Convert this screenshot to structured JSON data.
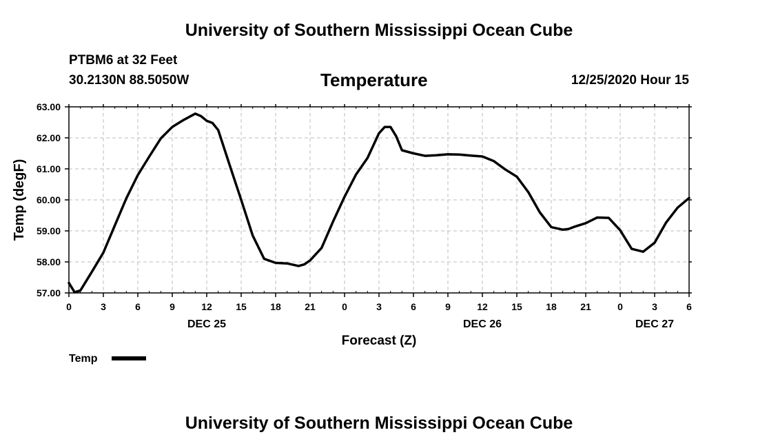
{
  "header": {
    "title_top": "University of Southern Mississippi Ocean Cube",
    "station": "PTBM6 at 32 Feet",
    "coords": "30.2130N 88.5050W",
    "chart_title": "Temperature",
    "datetime": "12/25/2020 Hour 15"
  },
  "footer": {
    "title_bottom": "University of Southern Mississippi Ocean Cube"
  },
  "colors": {
    "line": "#000000",
    "grid": "#bbbbbb"
  },
  "chart_data": {
    "type": "line",
    "title": "Temperature",
    "xlabel": "Forecast (Z)",
    "ylabel": "Temp (degF)",
    "ylim": [
      57,
      63
    ],
    "xlim": [
      0,
      54
    ],
    "y_ticks": [
      "57.00",
      "58.00",
      "59.00",
      "60.00",
      "61.00",
      "62.00",
      "63.00"
    ],
    "x_tick_labels": [
      "0",
      "3",
      "6",
      "9",
      "12",
      "15",
      "18",
      "21",
      "0",
      "3",
      "6",
      "9",
      "12",
      "15",
      "18",
      "21",
      "0",
      "3",
      "6"
    ],
    "date_labels": [
      {
        "label": "DEC 25",
        "hours": 12
      },
      {
        "label": "DEC 26",
        "hours": 36
      },
      {
        "label": "DEC 27",
        "hours": 51
      }
    ],
    "grid": true,
    "legend": {
      "placement": "bottom-left",
      "label": "Temp"
    },
    "series": [
      {
        "name": "Temp",
        "x": [
          0,
          0.5,
          1,
          1.5,
          2,
          3,
          4,
          5,
          6,
          7,
          8,
          9,
          10,
          11,
          11.5,
          12,
          12.5,
          13,
          14,
          15,
          16,
          17,
          18,
          19,
          20,
          20.5,
          21,
          22,
          23,
          24,
          25,
          26,
          27,
          27.5,
          28,
          28.5,
          29,
          30,
          31,
          32,
          33,
          34,
          35,
          36,
          37,
          38,
          39,
          40,
          41,
          42,
          43,
          43.5,
          44,
          45,
          46,
          47,
          48,
          48.5,
          49,
          50,
          51,
          52,
          53,
          54
        ],
        "y": [
          57.32,
          57.02,
          57.08,
          57.38,
          57.68,
          58.3,
          59.18,
          60.05,
          60.8,
          61.4,
          61.98,
          62.35,
          62.58,
          62.78,
          62.7,
          62.55,
          62.48,
          62.25,
          61.12,
          60.0,
          58.85,
          58.1,
          57.97,
          57.95,
          57.87,
          57.92,
          58.05,
          58.45,
          59.3,
          60.1,
          60.82,
          61.35,
          62.15,
          62.35,
          62.35,
          62.05,
          61.6,
          61.5,
          61.42,
          61.44,
          61.47,
          61.46,
          61.43,
          61.4,
          61.25,
          60.98,
          60.75,
          60.25,
          59.6,
          59.12,
          59.04,
          59.06,
          59.13,
          59.25,
          59.43,
          59.42,
          59.02,
          58.72,
          58.42,
          58.33,
          58.62,
          59.27,
          59.75,
          60.06
        ]
      }
    ]
  }
}
